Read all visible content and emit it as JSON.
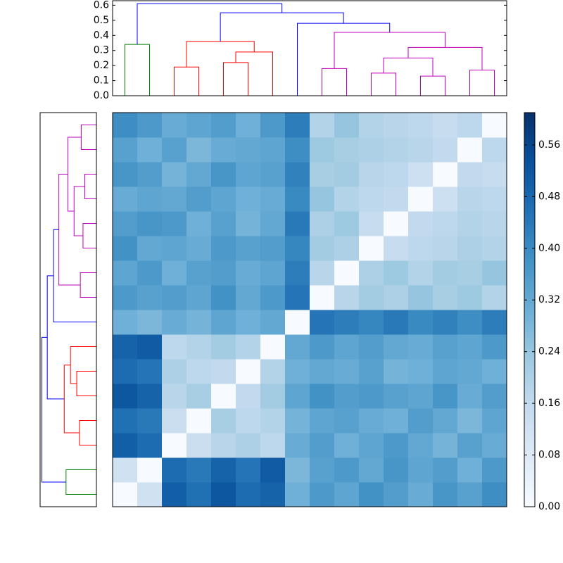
{
  "chart_data": {
    "type": "clustermap",
    "matrix": [
      [
        0,
        0.12,
        0.5,
        0.46,
        0.52,
        0.47,
        0.49,
        0.3,
        0.36,
        0.33,
        0.38,
        0.35,
        0.31,
        0.37,
        0.34,
        0.39
      ],
      [
        0.12,
        0,
        0.47,
        0.44,
        0.49,
        0.45,
        0.51,
        0.28,
        0.34,
        0.36,
        0.32,
        0.37,
        0.33,
        0.35,
        0.3,
        0.36
      ],
      [
        0.5,
        0.47,
        0,
        0.14,
        0.18,
        0.2,
        0.17,
        0.31,
        0.35,
        0.3,
        0.33,
        0.36,
        0.32,
        0.29,
        0.34,
        0.31
      ],
      [
        0.46,
        0.44,
        0.14,
        0,
        0.21,
        0.17,
        0.19,
        0.29,
        0.33,
        0.34,
        0.31,
        0.3,
        0.35,
        0.32,
        0.28,
        0.33
      ],
      [
        0.52,
        0.49,
        0.18,
        0.21,
        0,
        0.16,
        0.22,
        0.33,
        0.38,
        0.35,
        0.36,
        0.34,
        0.33,
        0.37,
        0.31,
        0.35
      ],
      [
        0.47,
        0.45,
        0.2,
        0.17,
        0.16,
        0,
        0.19,
        0.3,
        0.32,
        0.31,
        0.34,
        0.29,
        0.3,
        0.33,
        0.32,
        0.3
      ],
      [
        0.49,
        0.51,
        0.17,
        0.19,
        0.22,
        0.19,
        0,
        0.32,
        0.36,
        0.33,
        0.35,
        0.32,
        0.31,
        0.34,
        0.33,
        0.36
      ],
      [
        0.3,
        0.28,
        0.31,
        0.29,
        0.33,
        0.3,
        0.32,
        0,
        0.45,
        0.43,
        0.41,
        0.44,
        0.4,
        0.42,
        0.39,
        0.43
      ],
      [
        0.36,
        0.34,
        0.35,
        0.33,
        0.38,
        0.32,
        0.36,
        0.45,
        0,
        0.18,
        0.22,
        0.2,
        0.24,
        0.21,
        0.23,
        0.19
      ],
      [
        0.33,
        0.36,
        0.3,
        0.34,
        0.35,
        0.31,
        0.33,
        0.43,
        0.18,
        0,
        0.2,
        0.23,
        0.19,
        0.22,
        0.21,
        0.24
      ],
      [
        0.38,
        0.32,
        0.33,
        0.31,
        0.36,
        0.34,
        0.35,
        0.41,
        0.22,
        0.2,
        0,
        0.15,
        0.17,
        0.18,
        0.2,
        0.19
      ],
      [
        0.35,
        0.37,
        0.36,
        0.3,
        0.34,
        0.29,
        0.32,
        0.44,
        0.2,
        0.23,
        0.15,
        0,
        0.16,
        0.17,
        0.19,
        0.18
      ],
      [
        0.31,
        0.33,
        0.32,
        0.35,
        0.33,
        0.3,
        0.31,
        0.4,
        0.24,
        0.19,
        0.17,
        0.16,
        0,
        0.13,
        0.18,
        0.17
      ],
      [
        0.37,
        0.35,
        0.29,
        0.32,
        0.37,
        0.33,
        0.34,
        0.42,
        0.21,
        0.22,
        0.18,
        0.17,
        0.13,
        0,
        0.16,
        0.15
      ],
      [
        0.34,
        0.3,
        0.34,
        0.28,
        0.31,
        0.32,
        0.33,
        0.39,
        0.23,
        0.21,
        0.2,
        0.19,
        0.18,
        0.16,
        0,
        0.17
      ],
      [
        0.39,
        0.36,
        0.31,
        0.33,
        0.35,
        0.3,
        0.36,
        0.43,
        0.19,
        0.24,
        0.19,
        0.18,
        0.17,
        0.15,
        0.17,
        0
      ]
    ],
    "clim": [
      0,
      0.61
    ],
    "colormap": [
      "#f7fbff",
      "#deebf7",
      "#c6dbef",
      "#9ecae1",
      "#6baed6",
      "#4292c6",
      "#2171b5",
      "#08519c",
      "#08306b"
    ],
    "colorbar_ticks": [
      {
        "value": 0,
        "label": "0.00"
      },
      {
        "value": 0.08,
        "label": "0.08"
      },
      {
        "value": 0.16,
        "label": "0.16"
      },
      {
        "value": 0.24,
        "label": "0.24"
      },
      {
        "value": 0.32,
        "label": "0.32"
      },
      {
        "value": 0.4,
        "label": "0.40"
      },
      {
        "value": 0.48,
        "label": "0.48"
      },
      {
        "value": 0.56,
        "label": "0.56"
      }
    ],
    "dendrogram": {
      "xlim": [
        0,
        160
      ],
      "ylim": [
        0,
        0.63
      ],
      "yticks": [
        {
          "value": 0,
          "label": "0.0"
        },
        {
          "value": 0.1,
          "label": "0.1"
        },
        {
          "value": 0.2,
          "label": "0.2"
        },
        {
          "value": 0.3,
          "label": "0.3"
        },
        {
          "value": 0.4,
          "label": "0.4"
        },
        {
          "value": 0.5,
          "label": "0.5"
        },
        {
          "value": 0.6,
          "label": "0.6"
        }
      ],
      "links": [
        {
          "x": [
            5,
            5,
            15,
            15
          ],
          "y": [
            0,
            0.34,
            0.34,
            0
          ],
          "color": "#008000"
        },
        {
          "x": [
            25,
            25,
            35,
            35
          ],
          "y": [
            0,
            0.19,
            0.19,
            0
          ],
          "color": "#ff0000"
        },
        {
          "x": [
            45,
            45,
            55,
            55
          ],
          "y": [
            0,
            0.22,
            0.22,
            0
          ],
          "color": "#ff0000"
        },
        {
          "x": [
            50,
            50,
            65,
            65
          ],
          "y": [
            0.22,
            0.29,
            0.29,
            0
          ],
          "color": "#ff0000"
        },
        {
          "x": [
            30,
            30,
            57.5,
            57.5
          ],
          "y": [
            0.19,
            0.36,
            0.36,
            0.29
          ],
          "color": "#ff0000"
        },
        {
          "x": [
            85,
            85,
            95,
            95
          ],
          "y": [
            0,
            0.18,
            0.18,
            0
          ],
          "color": "#bf00bf"
        },
        {
          "x": [
            105,
            105,
            115,
            115
          ],
          "y": [
            0,
            0.15,
            0.15,
            0
          ],
          "color": "#bf00bf"
        },
        {
          "x": [
            125,
            125,
            135,
            135
          ],
          "y": [
            0,
            0.13,
            0.13,
            0
          ],
          "color": "#bf00bf"
        },
        {
          "x": [
            145,
            145,
            155,
            155
          ],
          "y": [
            0,
            0.17,
            0.17,
            0
          ],
          "color": "#bf00bf"
        },
        {
          "x": [
            110,
            110,
            130,
            130
          ],
          "y": [
            0.15,
            0.25,
            0.25,
            0.13
          ],
          "color": "#bf00bf"
        },
        {
          "x": [
            120,
            120,
            150,
            150
          ],
          "y": [
            0.25,
            0.32,
            0.32,
            0.17
          ],
          "color": "#bf00bf"
        },
        {
          "x": [
            90,
            90,
            135,
            135
          ],
          "y": [
            0.18,
            0.42,
            0.42,
            0.32
          ],
          "color": "#bf00bf"
        },
        {
          "x": [
            75,
            75,
            112.5,
            112.5
          ],
          "y": [
            0,
            0.48,
            0.48,
            0.42
          ],
          "color": "#0000ff"
        },
        {
          "x": [
            43.75,
            43.75,
            93.75,
            93.75
          ],
          "y": [
            0.36,
            0.55,
            0.55,
            0.48
          ],
          "color": "#0000ff"
        },
        {
          "x": [
            10,
            10,
            68.75,
            68.75
          ],
          "y": [
            0.34,
            0.61,
            0.61,
            0.55
          ],
          "color": "#0000ff"
        }
      ]
    }
  }
}
